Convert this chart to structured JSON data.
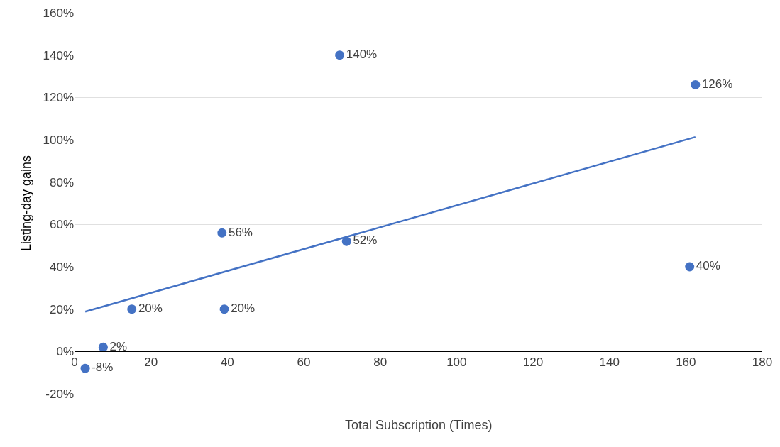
{
  "chart_data": {
    "type": "scatter",
    "xlabel": "Total Subscription (Times)",
    "ylabel": "Listing-day gains",
    "series": [
      {
        "color": "#4472c4",
        "x": [
          2.8,
          7.5,
          15,
          38.6,
          39.2,
          69.4,
          71.2,
          162.5,
          161
        ],
        "values": [
          -8,
          2,
          20,
          56,
          20,
          140,
          52,
          126,
          40
        ],
        "value_labels": [
          "-8%",
          "2%",
          "20%",
          "56%",
          "20%",
          "140%",
          "52%",
          "126%",
          "40%"
        ],
        "marker": "circle"
      },
      {
        "type": "line",
        "color": "#4472c4",
        "x": [
          2.8,
          162.5
        ],
        "values": [
          18.8,
          101.3
        ],
        "line_style": "solid"
      }
    ],
    "xlim": [
      0,
      180
    ],
    "xticks": [
      0,
      20,
      40,
      60,
      80,
      100,
      120,
      140,
      160,
      180
    ],
    "ylim": [
      -20,
      160
    ],
    "yticks": [
      {
        "value": -20,
        "label": "-20%"
      },
      {
        "value": 0,
        "label": "0%"
      },
      {
        "value": 20,
        "label": "20%"
      },
      {
        "value": 40,
        "label": "40%"
      },
      {
        "value": 60,
        "label": "60%"
      },
      {
        "value": 80,
        "label": "80%"
      },
      {
        "value": 100,
        "label": "100%"
      },
      {
        "value": 120,
        "label": "120%"
      },
      {
        "value": 140,
        "label": "140%"
      },
      {
        "value": 160,
        "label": "160%"
      }
    ],
    "grid": "y"
  }
}
